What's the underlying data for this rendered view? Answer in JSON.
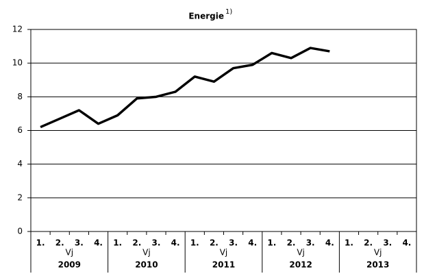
{
  "chart_data": {
    "type": "line",
    "title": "Energie",
    "title_footnote": "1)",
    "categories": [
      "1.",
      "2.",
      "3.",
      "4.",
      "1.",
      "2.",
      "3.",
      "4.",
      "1.",
      "2.",
      "3.",
      "4.",
      "1.",
      "2.",
      "3.",
      "4.",
      "1.",
      "2.",
      "3.",
      "4."
    ],
    "groups": [
      "2009",
      "2010",
      "2011",
      "2012",
      "2013"
    ],
    "group_sublabel": "Vj",
    "values": [
      6.2,
      6.7,
      7.2,
      6.4,
      6.9,
      7.9,
      8.0,
      8.3,
      9.2,
      8.9,
      9.7,
      9.9,
      10.6,
      10.3,
      10.9,
      10.7,
      null,
      null,
      null,
      null
    ],
    "color": "#000000",
    "ylim": [
      0,
      12
    ],
    "yticks": [
      0,
      2,
      4,
      6,
      8,
      10,
      12
    ],
    "grid": true
  }
}
